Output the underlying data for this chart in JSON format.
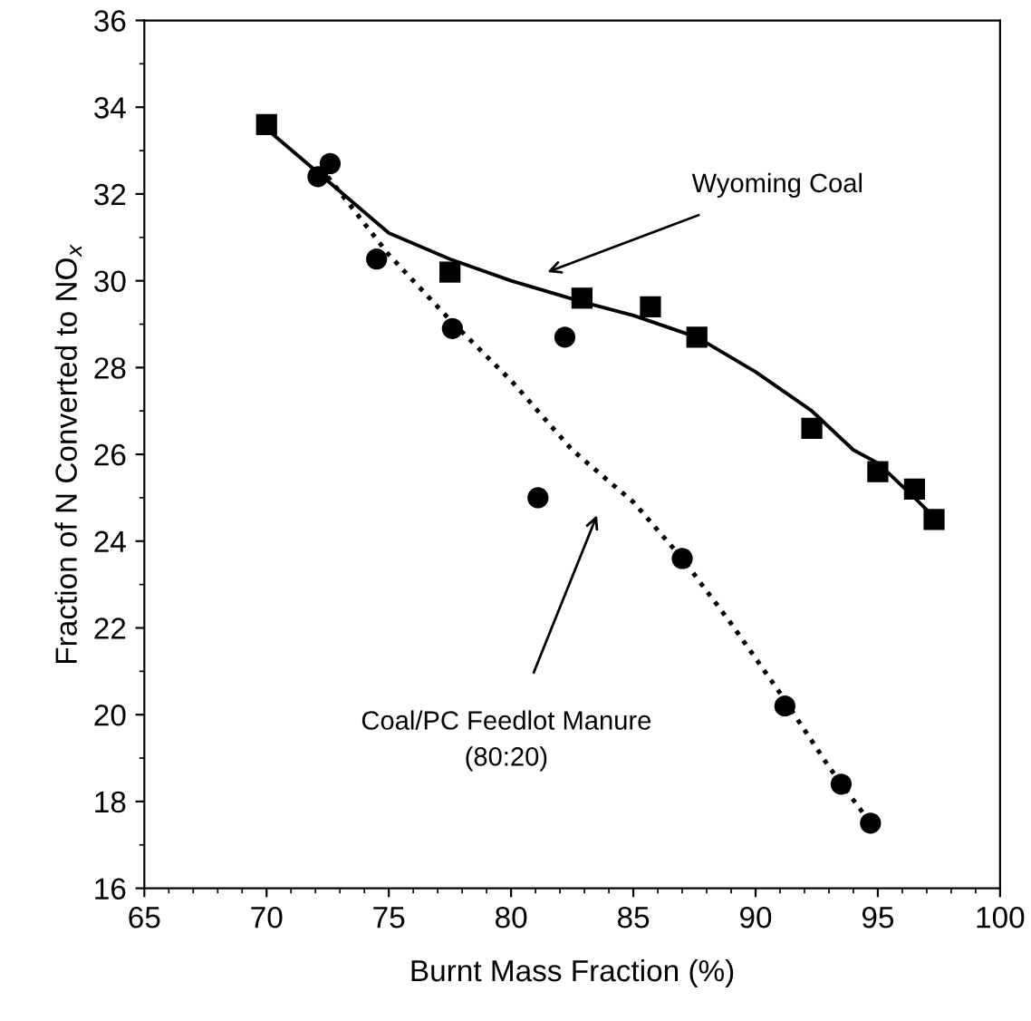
{
  "chart_data": {
    "type": "scatter",
    "xlabel": "Burnt Mass Fraction (%)",
    "ylabel": "Fraction of N Converted to NO$_{x}$",
    "xlim": [
      65,
      100
    ],
    "xticks": [
      65,
      70,
      75,
      80,
      85,
      90,
      95,
      100
    ],
    "ylim": [
      16,
      36
    ],
    "yticks": [
      16,
      18,
      20,
      22,
      24,
      26,
      28,
      30,
      32,
      34,
      36
    ],
    "grid": false,
    "legend": false,
    "series": [
      {
        "marker": "square",
        "color": "#000000",
        "x": [
          70.0,
          77.5,
          82.9,
          85.7,
          87.6,
          92.3,
          95.0,
          96.5,
          97.3
        ],
        "values": [
          33.6,
          30.2,
          29.6,
          29.4,
          28.7,
          26.6,
          25.6,
          25.2,
          24.5
        ]
      },
      {
        "marker": "circle",
        "color": "#000000",
        "x": [
          72.1,
          72.6,
          74.5,
          77.6,
          81.1,
          82.2,
          87.0,
          91.2,
          93.5,
          94.7
        ],
        "values": [
          32.4,
          32.7,
          30.5,
          28.9,
          25.0,
          28.7,
          23.6,
          20.2,
          18.4,
          17.5
        ]
      },
      {
        "type": "line",
        "line_style": "solid",
        "marker": "none",
        "color": "#000000",
        "x": [
          70.0,
          72.5,
          75.0,
          77.5,
          80.0,
          83.0,
          85.0,
          87.6,
          90.0,
          92.3,
          94.0,
          95.0,
          96.5,
          97.4
        ],
        "values": [
          33.5,
          32.3,
          31.1,
          30.5,
          30.0,
          29.5,
          29.2,
          28.7,
          27.9,
          27.0,
          26.1,
          25.8,
          25.0,
          24.5
        ]
      },
      {
        "type": "line",
        "line_style": "dotted",
        "marker": "none",
        "color": "#000000",
        "x": [
          72.5,
          75.0,
          77.5,
          80.0,
          82.5,
          85.0,
          87.0,
          89.0,
          91.0,
          93.0,
          94.7
        ],
        "values": [
          32.4,
          30.6,
          29.1,
          27.7,
          26.1,
          24.9,
          23.6,
          22.1,
          20.5,
          18.8,
          17.5
        ]
      }
    ],
    "annotations": [
      "Wyoming Coal",
      "Coal/PC Feedlot Manure\n(80:20)"
    ]
  }
}
